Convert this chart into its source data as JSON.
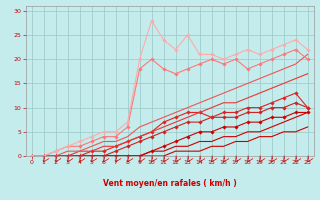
{
  "xlabel": "Vent moyen/en rafales ( km/h )",
  "bg_color": "#c5eced",
  "grid_color": "#a0cccc",
  "xlim": [
    -0.5,
    23.5
  ],
  "ylim": [
    0,
    31
  ],
  "yticks": [
    0,
    5,
    10,
    15,
    20,
    25,
    30
  ],
  "xticks": [
    0,
    1,
    2,
    3,
    4,
    5,
    6,
    7,
    8,
    9,
    10,
    11,
    12,
    13,
    14,
    15,
    16,
    17,
    18,
    19,
    20,
    21,
    22,
    23
  ],
  "lines": [
    {
      "x": [
        0,
        1,
        2,
        3,
        4,
        5,
        6,
        7,
        8,
        9,
        10,
        11,
        12,
        13,
        14,
        15,
        16,
        17,
        18,
        19,
        20,
        21,
        22,
        23
      ],
      "y": [
        0,
        0,
        0,
        0,
        0,
        0,
        0,
        0,
        0,
        0,
        0,
        0,
        1,
        1,
        1,
        2,
        2,
        3,
        3,
        4,
        4,
        5,
        5,
        6
      ],
      "color": "#cc0000",
      "lw": 0.8,
      "marker": null,
      "ms": 0
    },
    {
      "x": [
        0,
        1,
        2,
        3,
        4,
        5,
        6,
        7,
        8,
        9,
        10,
        11,
        12,
        13,
        14,
        15,
        16,
        17,
        18,
        19,
        20,
        21,
        22,
        23
      ],
      "y": [
        0,
        0,
        0,
        0,
        0,
        0,
        0,
        0,
        0,
        0,
        1,
        1,
        2,
        2,
        3,
        3,
        4,
        4,
        5,
        5,
        6,
        7,
        8,
        9
      ],
      "color": "#cc0000",
      "lw": 0.8,
      "marker": null,
      "ms": 0
    },
    {
      "x": [
        0,
        1,
        2,
        3,
        4,
        5,
        6,
        7,
        8,
        9,
        10,
        11,
        12,
        13,
        14,
        15,
        16,
        17,
        18,
        19,
        20,
        21,
        22,
        23
      ],
      "y": [
        0,
        0,
        0,
        0,
        0,
        0,
        0,
        0,
        0,
        0,
        1,
        2,
        3,
        4,
        5,
        5,
        6,
        6,
        7,
        7,
        8,
        8,
        9,
        9
      ],
      "color": "#cc0000",
      "lw": 0.8,
      "marker": "D",
      "ms": 1.8
    },
    {
      "x": [
        0,
        1,
        2,
        3,
        4,
        5,
        6,
        7,
        8,
        9,
        10,
        11,
        12,
        13,
        14,
        15,
        16,
        17,
        18,
        19,
        20,
        21,
        22,
        23
      ],
      "y": [
        0,
        0,
        0,
        0,
        0,
        0,
        0,
        1,
        2,
        3,
        4,
        5,
        6,
        7,
        7,
        8,
        8,
        8,
        9,
        9,
        10,
        10,
        11,
        10
      ],
      "color": "#cc2222",
      "lw": 0.8,
      "marker": "D",
      "ms": 1.8
    },
    {
      "x": [
        0,
        1,
        2,
        3,
        4,
        5,
        6,
        7,
        8,
        9,
        10,
        11,
        12,
        13,
        14,
        15,
        16,
        17,
        18,
        19,
        20,
        21,
        22,
        23
      ],
      "y": [
        0,
        0,
        0,
        0,
        0,
        1,
        1,
        2,
        3,
        4,
        5,
        7,
        8,
        9,
        9,
        8,
        9,
        9,
        10,
        10,
        11,
        12,
        13,
        10
      ],
      "color": "#dd2222",
      "lw": 0.8,
      "marker": "D",
      "ms": 1.8
    },
    {
      "x": [
        0,
        1,
        2,
        3,
        4,
        5,
        6,
        7,
        8,
        9,
        10,
        11,
        12,
        13,
        14,
        15,
        16,
        17,
        18,
        19,
        20,
        21,
        22,
        23
      ],
      "y": [
        0,
        0,
        0,
        0,
        1,
        1,
        2,
        2,
        3,
        4,
        5,
        6,
        7,
        8,
        9,
        10,
        11,
        11,
        12,
        13,
        14,
        15,
        16,
        17
      ],
      "color": "#ee3333",
      "lw": 0.8,
      "marker": null,
      "ms": 0
    },
    {
      "x": [
        0,
        1,
        2,
        3,
        4,
        5,
        6,
        7,
        8,
        9,
        10,
        11,
        12,
        13,
        14,
        15,
        16,
        17,
        18,
        19,
        20,
        21,
        22,
        23
      ],
      "y": [
        0,
        0,
        0,
        1,
        1,
        2,
        3,
        3,
        4,
        6,
        7,
        8,
        9,
        10,
        11,
        12,
        13,
        14,
        15,
        16,
        17,
        18,
        19,
        21
      ],
      "color": "#ee5555",
      "lw": 0.8,
      "marker": null,
      "ms": 0
    },
    {
      "x": [
        0,
        1,
        2,
        3,
        4,
        5,
        6,
        7,
        8,
        9,
        10,
        11,
        12,
        13,
        14,
        15,
        16,
        17,
        18,
        19,
        20,
        21,
        22,
        23
      ],
      "y": [
        0,
        0,
        1,
        2,
        2,
        3,
        4,
        4,
        6,
        18,
        20,
        18,
        17,
        18,
        19,
        20,
        19,
        20,
        18,
        19,
        20,
        21,
        22,
        20
      ],
      "color": "#ff7777",
      "lw": 0.8,
      "marker": "D",
      "ms": 1.8
    },
    {
      "x": [
        0,
        1,
        2,
        3,
        4,
        5,
        6,
        7,
        8,
        9,
        10,
        11,
        12,
        13,
        14,
        15,
        16,
        17,
        18,
        19,
        20,
        21,
        22,
        23
      ],
      "y": [
        0,
        0,
        1,
        2,
        3,
        4,
        5,
        5,
        7,
        20,
        28,
        24,
        22,
        25,
        21,
        21,
        20,
        21,
        22,
        21,
        22,
        23,
        24,
        22
      ],
      "color": "#ffaaaa",
      "lw": 0.8,
      "marker": "D",
      "ms": 1.8
    }
  ]
}
